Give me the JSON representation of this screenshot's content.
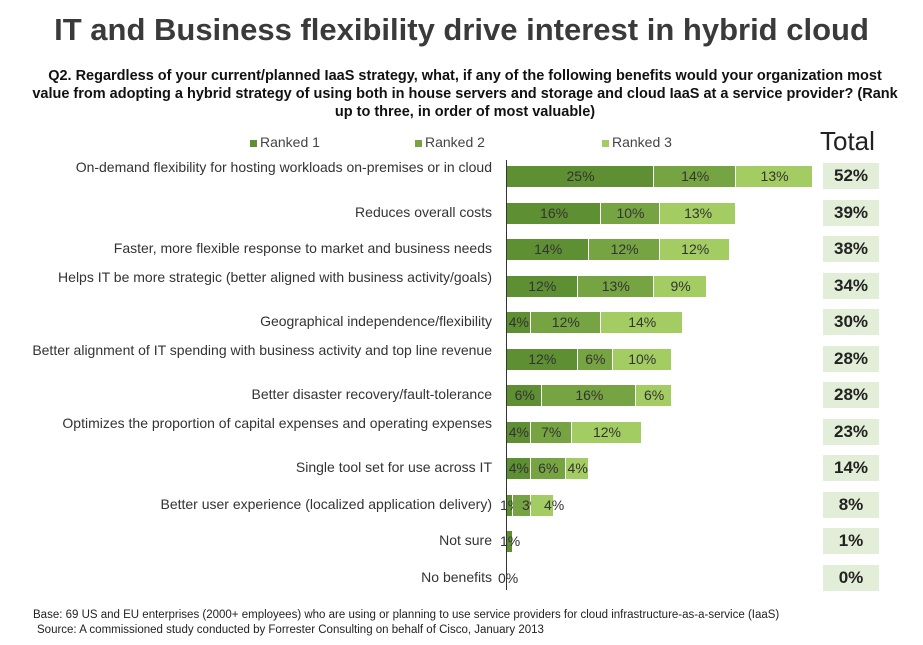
{
  "chart_data": {
    "type": "bar",
    "stacked": true,
    "orientation": "horizontal",
    "title": "IT and Business flexibility drive interest in hybrid cloud",
    "subtitle": "Q2. Regardless of your current/planned IaaS strategy, what, if any of the following benefits would your organization most value from adopting a hybrid strategy of using both in house servers and storage and cloud IaaS at a service provider? (Rank up to three, in order of most valuable)",
    "total_header": "Total",
    "legend_position": "top",
    "categories": [
      "On-demand flexibility for hosting workloads on-premises or in cloud",
      "Reduces overall costs",
      "Faster, more flexible response to market and business needs",
      "Helps IT be more strategic (better aligned with business activity/goals)",
      "Geographical independence/flexibility",
      "Better alignment of IT spending with business activity and top line revenue",
      "Better disaster recovery/fault-tolerance",
      "Optimizes the proportion of capital expenses and operating expenses",
      "Single tool set for use across IT",
      "Better user experience (localized application delivery)",
      "Not sure",
      "No benefits"
    ],
    "series": [
      {
        "name": "Ranked 1",
        "color": "#5e8f32",
        "values": [
          25,
          16,
          14,
          12,
          4,
          12,
          6,
          4,
          4,
          1,
          1,
          0
        ]
      },
      {
        "name": "Ranked 2",
        "color": "#77a443",
        "values": [
          14,
          10,
          12,
          13,
          12,
          6,
          16,
          7,
          6,
          3,
          null,
          null
        ]
      },
      {
        "name": "Ranked 3",
        "color": "#a3cd62",
        "values": [
          13,
          13,
          12,
          9,
          14,
          10,
          6,
          12,
          4,
          4,
          null,
          null
        ]
      }
    ],
    "totals": [
      "52%",
      "39%",
      "38%",
      "34%",
      "30%",
      "28%",
      "28%",
      "23%",
      "14%",
      "8%",
      "1%",
      "0%"
    ],
    "unit": "%"
  },
  "footnote": [
    "Base: 69 US and EU enterprises (2000+ employees) who are using or planning to use service providers for cloud infrastructure-as-a-service  (IaaS)",
    "Source:  A commissioned study conducted by Forrester Consulting on behalf of Cisco, January 2013"
  ]
}
